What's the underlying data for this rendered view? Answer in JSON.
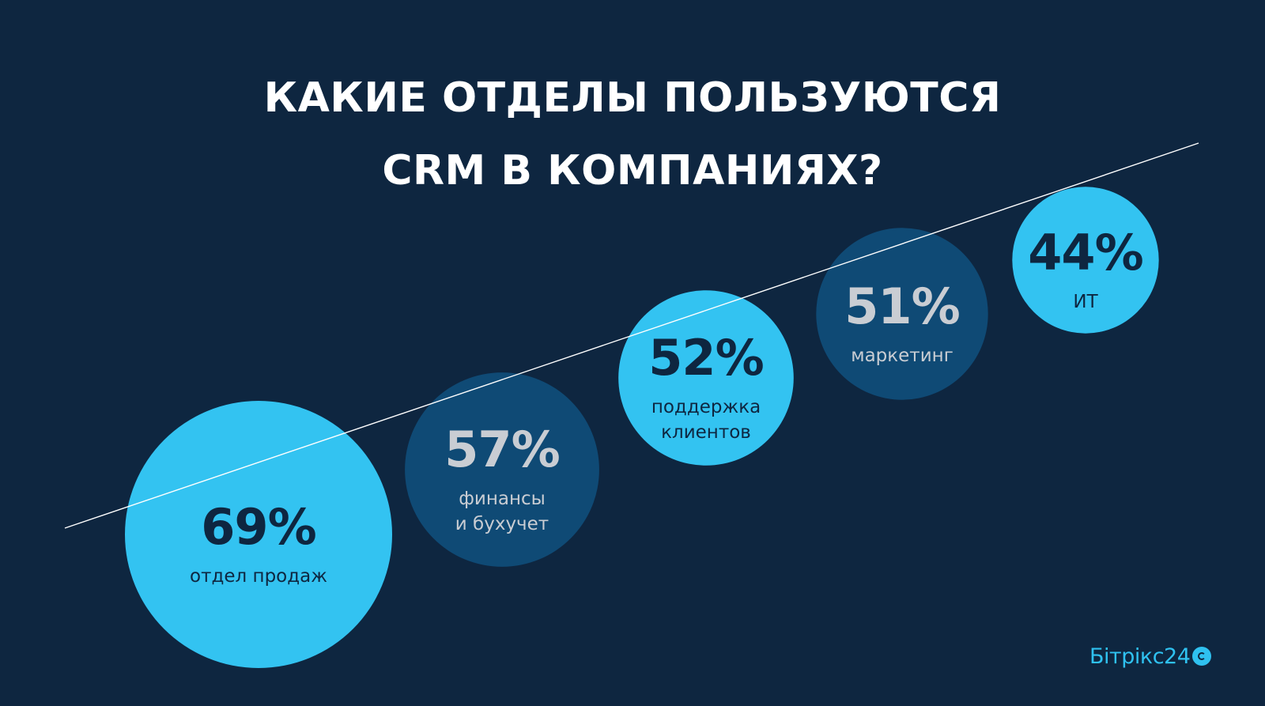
{
  "title_lines": [
    "КАКИЕ ОТДЕЛЫ ПОЛЬЗУЮТСЯ",
    "CRM В КОМПАНИЯХ?"
  ],
  "logo": {
    "text": "Бітрікс24",
    "icon": "bitrix24-logo-icon"
  },
  "colors": {
    "background": "#0e2640",
    "light_bubble": "#33c3f1",
    "dark_bubble": "#0f4a75",
    "text_on_light": "#0e2640",
    "text_on_dark": "#c9cdd3",
    "trend_line": "#ffffff",
    "logo": "#2fc1f0"
  },
  "chart_data": {
    "type": "bubble",
    "title": "КАКИЕ ОТДЕЛЫ ПОЛЬЗУЮТСЯ CRM В КОМПАНИЯХ?",
    "unit": "%",
    "categories": [
      "отдел продаж",
      "финансы и бухучет",
      "поддержка клиентов",
      "маркетинг",
      "ИТ"
    ],
    "values": [
      69,
      57,
      52,
      51,
      44
    ],
    "labels": [
      "69%",
      "57%",
      "52%",
      "51%",
      "44%"
    ],
    "label_lines": [
      [
        "отдел продаж"
      ],
      [
        "финансы",
        "и бухучет"
      ],
      [
        "поддержка",
        "клиентов"
      ],
      [
        "маркетинг"
      ],
      [
        "ИТ"
      ]
    ],
    "styles": [
      "light",
      "dark",
      "light",
      "dark",
      "light"
    ],
    "decorations": {
      "trend_line": true
    }
  }
}
